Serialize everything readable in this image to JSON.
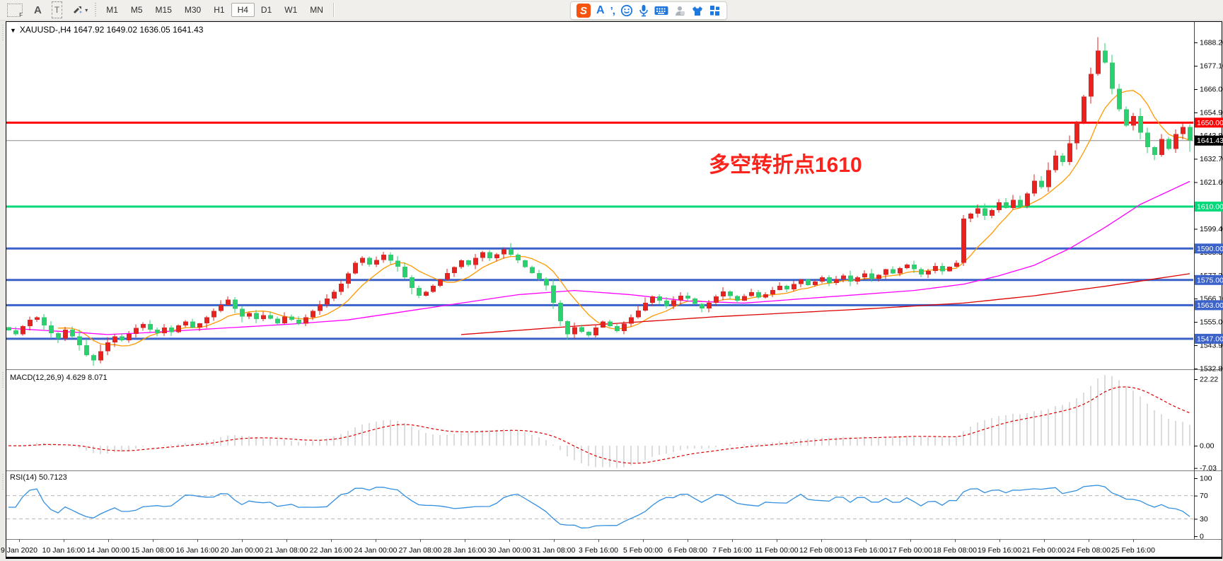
{
  "toolbar": {
    "left_tools": [
      {
        "name": "indicators-window-tool",
        "label": "F"
      },
      {
        "name": "cursor-tool",
        "label": "A"
      },
      {
        "name": "text-label-tool",
        "label": "T"
      },
      {
        "name": "arrange-objects-tool",
        "label": ""
      }
    ],
    "dropdown_arrow": "▾",
    "timeframes": [
      "M1",
      "M5",
      "M15",
      "M30",
      "H1",
      "H4",
      "D1",
      "W1",
      "MN"
    ],
    "active_timeframe": "H4",
    "ime": {
      "logo": "S",
      "letter": "A",
      "punct": "’,"
    }
  },
  "chart_header": {
    "dropdown": "▼",
    "title": "XAUUSD-,H4  1647.92 1649.02 1636.05 1641.43"
  },
  "macd_panel": {
    "label": "MACD(12,26,9) 4.629 8.071"
  },
  "rsi_panel": {
    "label": "RSI(14) 50.7123"
  },
  "chart_data": {
    "type": "candlestick",
    "instrument": "XAUUSD-",
    "timeframe": "H4",
    "ohlc_header": {
      "open": 1647.92,
      "high": 1649.02,
      "low": 1636.05,
      "close": 1641.43
    },
    "annotation": {
      "text": "多空转折点1610",
      "color": "#fb231c"
    },
    "price_axis_ticks": [
      "1688.20",
      "1677.10",
      "1666.00",
      "1654.90",
      "1643.80",
      "1632.70",
      "1621.60",
      "1610.50",
      "1599.40",
      "1588.30",
      "1577.20",
      "1566.10",
      "1555.00",
      "1543.90",
      "1532.80"
    ],
    "x_axis_labels": [
      "9 Jan 2020",
      "10 Jan 16:00",
      "14 Jan 00:00",
      "15 Jan 08:00",
      "16 Jan 16:00",
      "20 Jan 00:00",
      "21 Jan 08:00",
      "22 Jan 16:00",
      "24 Jan 00:00",
      "27 Jan 08:00",
      "28 Jan 16:00",
      "30 Jan 00:00",
      "31 Jan 08:00",
      "3 Feb 16:00",
      "5 Feb 00:00",
      "6 Feb 08:00",
      "7 Feb 16:00",
      "11 Feb 00:00",
      "12 Feb 08:00",
      "13 Feb 16:00",
      "17 Feb 00:00",
      "18 Feb 08:00",
      "19 Feb 16:00",
      "21 Feb 00:00",
      "24 Feb 08:00",
      "25 Feb 16:00"
    ],
    "bull_color": "#e8231f",
    "bear_color": "#2bd16e",
    "first_open": 1552.5,
    "closes": [
      1551.0,
      1549.2,
      1553.0,
      1556.1,
      1557.2,
      1553.4,
      1549.6,
      1547.1,
      1551.3,
      1548.2,
      1544.0,
      1539.2,
      1536.6,
      1541.0,
      1545.2,
      1548.1,
      1546.3,
      1549.4,
      1552.2,
      1554.1,
      1551.3,
      1549.6,
      1552.4,
      1550.2,
      1553.3,
      1555.2,
      1552.4,
      1554.3,
      1557.2,
      1560.3,
      1563.1,
      1565.6,
      1561.2,
      1557.6,
      1559.3,
      1556.4,
      1558.2,
      1556.6,
      1554.4,
      1557.6,
      1556.1,
      1554.2,
      1557.3,
      1560.2,
      1563.3,
      1566.2,
      1569.4,
      1573.2,
      1578.1,
      1583.2,
      1585.6,
      1582.3,
      1584.6,
      1587.1,
      1584.2,
      1581.3,
      1576.2,
      1571.3,
      1567.6,
      1569.4,
      1572.3,
      1575.2,
      1578.3,
      1581.2,
      1584.3,
      1582.1,
      1585.6,
      1588.2,
      1585.4,
      1587.2,
      1589.6,
      1587.1,
      1584.4,
      1581.2,
      1578.3,
      1575.6,
      1572.4,
      1564.2,
      1555.3,
      1549.2,
      1552.6,
      1550.3,
      1548.6,
      1552.4,
      1555.2,
      1553.1,
      1550.6,
      1554.2,
      1557.3,
      1560.4,
      1564.2,
      1567.1,
      1565.2,
      1562.6,
      1565.3,
      1567.6,
      1566.1,
      1563.6,
      1561.4,
      1564.2,
      1567.2,
      1569.6,
      1567.4,
      1565.2,
      1567.3,
      1569.2,
      1566.6,
      1568.2,
      1570.3,
      1572.2,
      1570.6,
      1573.1,
      1575.2,
      1572.6,
      1574.3,
      1576.2,
      1573.6,
      1575.4,
      1577.1,
      1574.2,
      1576.3,
      1578.2,
      1575.6,
      1577.4,
      1580.1,
      1578.2,
      1580.6,
      1582.4,
      1580.2,
      1577.6,
      1579.4,
      1581.6,
      1579.2,
      1581.3,
      1583.2,
      1604.2,
      1606.6,
      1609.2,
      1605.6,
      1608.3,
      1612.1,
      1609.3,
      1613.2,
      1610.4,
      1616.2,
      1622.3,
      1619.2,
      1627.4,
      1634.2,
      1631.3,
      1640.2,
      1650.3,
      1662.4,
      1673.2,
      1684.3,
      1678.6,
      1666.2,
      1656.3,
      1648.6,
      1653.2,
      1645.2,
      1638.3,
      1634.6,
      1642.2,
      1637.4,
      1644.6,
      1647.9,
      1641.43
    ],
    "last_candle": {
      "o": 1647.92,
      "h": 1649.02,
      "l": 1636.05,
      "c": 1641.43
    },
    "wick_overrides": {
      "12": {
        "low": 1534.2
      },
      "71": {
        "high": 1592.6
      },
      "135": {
        "high": 1606.0
      },
      "154": {
        "high": 1690.8
      }
    },
    "horizontal_levels": [
      {
        "price": 1650.0,
        "label": "1650.00",
        "color": "#ff0000",
        "text_color": "#ffffff",
        "width": 3
      },
      {
        "price": 1610.0,
        "label": "1610.00",
        "color": "#00d97a",
        "text_color": "#ffffff",
        "width": 3
      },
      {
        "price": 1590.0,
        "label": "1590.00",
        "color": "#3a62c9",
        "text_color": "#ffffff",
        "width": 3
      },
      {
        "price": 1575.0,
        "label": "1575.00",
        "color": "#3a62c9",
        "text_color": "#ffffff",
        "width": 3
      },
      {
        "price": 1563.0,
        "label": "1563.00",
        "color": "#3a62c9",
        "text_color": "#ffffff",
        "width": 3
      },
      {
        "price": 1547.0,
        "label": "1547.00",
        "color": "#3a62c9",
        "text_color": "#ffffff",
        "width": 3
      }
    ],
    "current_price": {
      "value": 1641.43,
      "label": "1641.43",
      "line_color": "#8c8c8c",
      "label_bg": "#000000",
      "text_color": "#ffffff"
    },
    "moving_averages": [
      {
        "name": "ma-fast",
        "color": "#ff9900",
        "type": "sma",
        "period": 8
      },
      {
        "name": "ma-mid",
        "color": "#ff00ff",
        "type": "waypoints",
        "points": [
          [
            0,
            1552
          ],
          [
            10,
            1550
          ],
          [
            14,
            1549
          ],
          [
            20,
            1550
          ],
          [
            30,
            1552
          ],
          [
            40,
            1554
          ],
          [
            48,
            1556
          ],
          [
            56,
            1560
          ],
          [
            64,
            1564
          ],
          [
            72,
            1568
          ],
          [
            80,
            1570
          ],
          [
            88,
            1568
          ],
          [
            96,
            1565
          ],
          [
            104,
            1564
          ],
          [
            112,
            1566
          ],
          [
            120,
            1568
          ],
          [
            128,
            1570
          ],
          [
            135,
            1573
          ],
          [
            140,
            1577
          ],
          [
            145,
            1582
          ],
          [
            150,
            1590
          ],
          [
            155,
            1600
          ],
          [
            160,
            1611
          ],
          [
            167,
            1622
          ]
        ]
      },
      {
        "name": "ma-slow",
        "color": "#dd0000",
        "type": "waypoints",
        "points": [
          [
            64,
            1549
          ],
          [
            80,
            1553
          ],
          [
            100,
            1557.5
          ],
          [
            120,
            1561
          ],
          [
            135,
            1564
          ],
          [
            145,
            1567.5
          ],
          [
            155,
            1572
          ],
          [
            167,
            1578
          ]
        ]
      }
    ],
    "macd": {
      "label": "MACD(12,26,9) 4.629 8.071",
      "fast": 12,
      "slow": 26,
      "signal": 9,
      "ticks": [
        {
          "v": 22.22,
          "label": "22.22"
        },
        {
          "v": 0,
          "label": "0.00"
        },
        {
          "v": -7.03,
          "label": "-7.03"
        }
      ],
      "histogram_color": "#b9b9b9",
      "signal_color": "#dd0000"
    },
    "rsi": {
      "label": "RSI(14) 50.7123",
      "period": 14,
      "value": 50.7123,
      "ticks": [
        {
          "v": 100,
          "label": "100"
        },
        {
          "v": 70,
          "label": "70"
        },
        {
          "v": 30,
          "label": "30"
        },
        {
          "v": 0,
          "label": "0"
        }
      ],
      "levels": [
        70,
        30
      ],
      "color": "#338fe0",
      "level_color": "#b5b5b5"
    }
  }
}
